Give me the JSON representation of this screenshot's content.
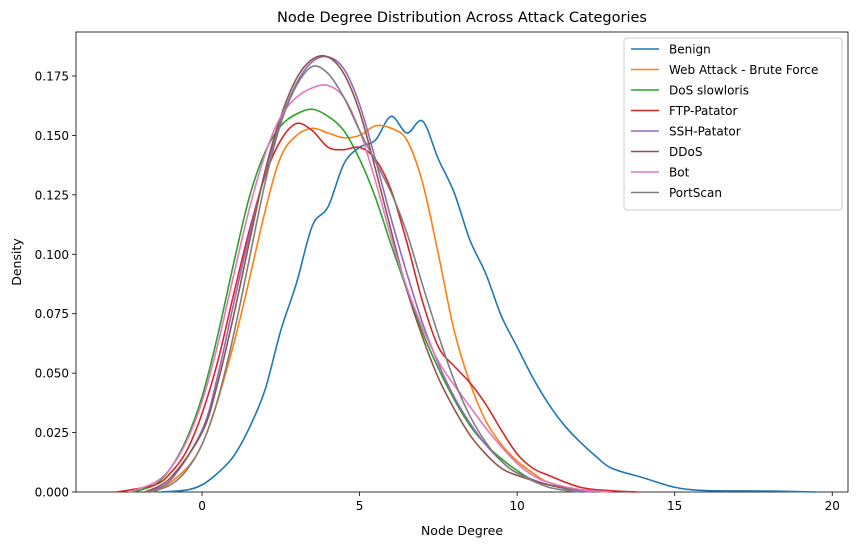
{
  "chart_data": {
    "type": "line",
    "title": "Node Degree Distribution Across Attack Categories",
    "xlabel": "Node Degree",
    "ylabel": "Density",
    "xlim": [
      -4,
      20.5
    ],
    "ylim": [
      0,
      0.1935
    ],
    "xticks": [
      0,
      5,
      10,
      15,
      20
    ],
    "xtick_labels": [
      "0",
      "5",
      "10",
      "15",
      "20"
    ],
    "yticks": [
      0,
      0.025,
      0.05,
      0.075,
      0.1,
      0.125,
      0.15,
      0.175
    ],
    "ytick_labels": [
      "0.000",
      "0.025",
      "0.050",
      "0.075",
      "0.100",
      "0.125",
      "0.150",
      "0.175"
    ],
    "grid": false,
    "legend_position": "top-right",
    "series": [
      {
        "name": "Benign",
        "color": "#1f77b4",
        "points": [
          [
            -1.3,
            0
          ],
          [
            -0.5,
            0.0008
          ],
          [
            0,
            0.003
          ],
          [
            0.5,
            0.008
          ],
          [
            1,
            0.015
          ],
          [
            1.5,
            0.027
          ],
          [
            2,
            0.043
          ],
          [
            2.5,
            0.068
          ],
          [
            3,
            0.088
          ],
          [
            3.5,
            0.112
          ],
          [
            4,
            0.12
          ],
          [
            4.5,
            0.138
          ],
          [
            5,
            0.145
          ],
          [
            5.5,
            0.148
          ],
          [
            6,
            0.158
          ],
          [
            6.5,
            0.151
          ],
          [
            7,
            0.156
          ],
          [
            7.5,
            0.14
          ],
          [
            8,
            0.126
          ],
          [
            8.5,
            0.106
          ],
          [
            9,
            0.092
          ],
          [
            9.5,
            0.074
          ],
          [
            10,
            0.061
          ],
          [
            10.5,
            0.048
          ],
          [
            11,
            0.037
          ],
          [
            11.5,
            0.028
          ],
          [
            12,
            0.021
          ],
          [
            12.5,
            0.015
          ],
          [
            13,
            0.01
          ],
          [
            14,
            0.006
          ],
          [
            15,
            0.002
          ],
          [
            16,
            0.0006
          ],
          [
            18,
            0.0004
          ],
          [
            19.5,
            0
          ]
        ]
      },
      {
        "name": "Web Attack - Brute Force",
        "color": "#ff7f0e",
        "points": [
          [
            -1.8,
            0
          ],
          [
            -1,
            0.004
          ],
          [
            0,
            0.02
          ],
          [
            1,
            0.062
          ],
          [
            2,
            0.118
          ],
          [
            2.5,
            0.141
          ],
          [
            3,
            0.15
          ],
          [
            3.5,
            0.153
          ],
          [
            4,
            0.151
          ],
          [
            4.5,
            0.149
          ],
          [
            5,
            0.15
          ],
          [
            5.5,
            0.154
          ],
          [
            6,
            0.153
          ],
          [
            6.5,
            0.148
          ],
          [
            7,
            0.13
          ],
          [
            7.5,
            0.1
          ],
          [
            8,
            0.068
          ],
          [
            8.5,
            0.046
          ],
          [
            9,
            0.03
          ],
          [
            9.5,
            0.02
          ],
          [
            10,
            0.013
          ],
          [
            10.5,
            0.008
          ],
          [
            11,
            0.004
          ],
          [
            12,
            0.001
          ],
          [
            13,
            0
          ]
        ]
      },
      {
        "name": "DoS slowloris",
        "color": "#2ca02c",
        "points": [
          [
            -2.2,
            0
          ],
          [
            -1.5,
            0.003
          ],
          [
            -1,
            0.01
          ],
          [
            -0.5,
            0.022
          ],
          [
            0,
            0.04
          ],
          [
            0.5,
            0.066
          ],
          [
            1,
            0.096
          ],
          [
            1.5,
            0.124
          ],
          [
            2,
            0.143
          ],
          [
            2.5,
            0.154
          ],
          [
            3,
            0.159
          ],
          [
            3.5,
            0.161
          ],
          [
            4,
            0.158
          ],
          [
            4.5,
            0.152
          ],
          [
            5,
            0.14
          ],
          [
            5.5,
            0.124
          ],
          [
            6,
            0.104
          ],
          [
            6.5,
            0.085
          ],
          [
            7,
            0.067
          ],
          [
            7.5,
            0.052
          ],
          [
            8,
            0.039
          ],
          [
            8.5,
            0.028
          ],
          [
            9,
            0.02
          ],
          [
            9.5,
            0.014
          ],
          [
            10,
            0.009
          ],
          [
            10.5,
            0.005
          ],
          [
            11,
            0.003
          ],
          [
            12,
            0
          ]
        ]
      },
      {
        "name": "FTP-Patator",
        "color": "#d62728",
        "points": [
          [
            -2.7,
            0
          ],
          [
            -1.5,
            0.003
          ],
          [
            -1,
            0.008
          ],
          [
            -0.5,
            0.017
          ],
          [
            0,
            0.033
          ],
          [
            0.5,
            0.055
          ],
          [
            1,
            0.083
          ],
          [
            1.5,
            0.11
          ],
          [
            2,
            0.133
          ],
          [
            2.5,
            0.148
          ],
          [
            3,
            0.155
          ],
          [
            3.5,
            0.152
          ],
          [
            4,
            0.145
          ],
          [
            4.5,
            0.144
          ],
          [
            5,
            0.145
          ],
          [
            5.5,
            0.14
          ],
          [
            6,
            0.127
          ],
          [
            6.5,
            0.105
          ],
          [
            7,
            0.08
          ],
          [
            7.5,
            0.061
          ],
          [
            8,
            0.053
          ],
          [
            8.5,
            0.046
          ],
          [
            9,
            0.037
          ],
          [
            9.5,
            0.026
          ],
          [
            10,
            0.016
          ],
          [
            10.5,
            0.01
          ],
          [
            11,
            0.007
          ],
          [
            12,
            0.002
          ],
          [
            13,
            0.0005
          ],
          [
            13.8,
            0
          ]
        ]
      },
      {
        "name": "SSH-Patator",
        "color": "#9467bd",
        "points": [
          [
            -1.8,
            0
          ],
          [
            -1,
            0.005
          ],
          [
            0,
            0.026
          ],
          [
            0.5,
            0.049
          ],
          [
            1,
            0.079
          ],
          [
            1.5,
            0.108
          ],
          [
            2,
            0.134
          ],
          [
            2.5,
            0.156
          ],
          [
            3,
            0.172
          ],
          [
            3.5,
            0.181
          ],
          [
            4,
            0.183
          ],
          [
            4.5,
            0.178
          ],
          [
            5,
            0.163
          ],
          [
            5.5,
            0.14
          ],
          [
            6,
            0.115
          ],
          [
            6.5,
            0.092
          ],
          [
            7,
            0.071
          ],
          [
            7.5,
            0.054
          ],
          [
            8,
            0.04
          ],
          [
            8.5,
            0.029
          ],
          [
            9,
            0.02
          ],
          [
            9.5,
            0.013
          ],
          [
            10,
            0.008
          ],
          [
            11,
            0.003
          ],
          [
            12,
            0.0005
          ],
          [
            12.5,
            0
          ]
        ]
      },
      {
        "name": "DDoS",
        "color": "#8c564b",
        "points": [
          [
            -1.8,
            0
          ],
          [
            -1,
            0.006
          ],
          [
            0,
            0.025
          ],
          [
            0.5,
            0.046
          ],
          [
            1,
            0.074
          ],
          [
            1.5,
            0.105
          ],
          [
            2,
            0.135
          ],
          [
            2.5,
            0.158
          ],
          [
            3,
            0.174
          ],
          [
            3.5,
            0.182
          ],
          [
            4,
            0.183
          ],
          [
            4.5,
            0.176
          ],
          [
            5,
            0.16
          ],
          [
            5.5,
            0.136
          ],
          [
            6,
            0.11
          ],
          [
            6.5,
            0.085
          ],
          [
            7,
            0.065
          ],
          [
            7.5,
            0.048
          ],
          [
            8,
            0.035
          ],
          [
            8.5,
            0.024
          ],
          [
            9,
            0.016
          ],
          [
            9.5,
            0.01
          ],
          [
            10,
            0.007
          ],
          [
            11,
            0.003
          ],
          [
            12,
            0.001
          ],
          [
            13,
            0
          ]
        ]
      },
      {
        "name": "Bot",
        "color": "#e377c2",
        "points": [
          [
            -2.3,
            0
          ],
          [
            -1.5,
            0.004
          ],
          [
            -1,
            0.01
          ],
          [
            -0.5,
            0.021
          ],
          [
            0,
            0.038
          ],
          [
            0.5,
            0.062
          ],
          [
            1,
            0.091
          ],
          [
            1.5,
            0.119
          ],
          [
            2,
            0.142
          ],
          [
            2.5,
            0.158
          ],
          [
            3,
            0.166
          ],
          [
            3.5,
            0.17
          ],
          [
            4,
            0.171
          ],
          [
            4.5,
            0.166
          ],
          [
            5,
            0.152
          ],
          [
            5.5,
            0.131
          ],
          [
            6,
            0.107
          ],
          [
            6.5,
            0.086
          ],
          [
            7,
            0.069
          ],
          [
            7.5,
            0.055
          ],
          [
            8,
            0.045
          ],
          [
            8.5,
            0.036
          ],
          [
            9,
            0.027
          ],
          [
            9.5,
            0.019
          ],
          [
            10,
            0.012
          ],
          [
            10.5,
            0.007
          ],
          [
            11,
            0.004
          ],
          [
            12,
            0.001
          ],
          [
            13,
            0
          ]
        ]
      },
      {
        "name": "PortScan",
        "color": "#7f7f7f",
        "points": [
          [
            -1.6,
            0
          ],
          [
            -1,
            0.003
          ],
          [
            -0.5,
            0.009
          ],
          [
            0,
            0.02
          ],
          [
            0.5,
            0.039
          ],
          [
            1,
            0.066
          ],
          [
            1.5,
            0.098
          ],
          [
            2,
            0.13
          ],
          [
            2.5,
            0.155
          ],
          [
            3,
            0.171
          ],
          [
            3.5,
            0.179
          ],
          [
            4,
            0.176
          ],
          [
            4.5,
            0.166
          ],
          [
            5,
            0.152
          ],
          [
            5.5,
            0.139
          ],
          [
            6,
            0.126
          ],
          [
            6.5,
            0.109
          ],
          [
            7,
            0.087
          ],
          [
            7.5,
            0.066
          ],
          [
            8,
            0.047
          ],
          [
            8.5,
            0.032
          ],
          [
            9,
            0.021
          ],
          [
            9.5,
            0.013
          ],
          [
            10,
            0.008
          ],
          [
            11,
            0.002
          ],
          [
            12,
            0
          ]
        ]
      }
    ]
  }
}
